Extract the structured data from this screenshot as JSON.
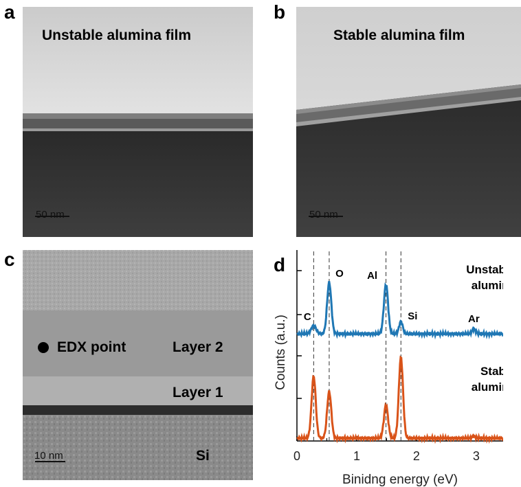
{
  "panels": {
    "a": {
      "letter": "a",
      "title": "Unstable alumina film",
      "scalebar": "50 nm"
    },
    "b": {
      "letter": "b",
      "title": "Stable alumina film",
      "scalebar": "50 nm"
    },
    "c": {
      "letter": "c",
      "marker_label": "EDX point",
      "layer2": "Layer 2",
      "layer1": "Layer 1",
      "substrate": "Si",
      "scalebar": "10 nm"
    },
    "d": {
      "letter": "d"
    }
  },
  "chart_data": {
    "type": "line",
    "xlabel": "Binidng energy (eV)",
    "ylabel": "Counts (a.u.)",
    "xlim": [
      0,
      3.45
    ],
    "xticks": [
      0,
      1,
      2,
      3
    ],
    "dashed_lines_x": [
      0.28,
      0.54,
      1.49,
      1.74
    ],
    "colors": {
      "unstable": "#1f77b4",
      "stable": "#d95319"
    },
    "series": [
      {
        "key": "unstable",
        "label": "Unstable\nalumina",
        "peaks": [
          {
            "x": 0.28,
            "height": 0.12,
            "width": 0.04,
            "label": "C"
          },
          {
            "x": 0.54,
            "height": 0.75,
            "width": 0.035,
            "label": "O"
          },
          {
            "x": 1.49,
            "height": 0.72,
            "width": 0.035,
            "label": "Al"
          },
          {
            "x": 1.74,
            "height": 0.18,
            "width": 0.03,
            "label": "Si"
          },
          {
            "x": 2.96,
            "height": 0.07,
            "width": 0.03,
            "label": "Ar"
          }
        ]
      },
      {
        "key": "stable",
        "label": "Stable\nalumina",
        "peaks": [
          {
            "x": 0.28,
            "height": 0.9,
            "width": 0.035,
            "label": ""
          },
          {
            "x": 0.54,
            "height": 0.68,
            "width": 0.035,
            "label": ""
          },
          {
            "x": 1.49,
            "height": 0.48,
            "width": 0.035,
            "label": ""
          },
          {
            "x": 1.74,
            "height": 1.18,
            "width": 0.035,
            "label": ""
          },
          {
            "x": 2.96,
            "height": 0.03,
            "width": 0.03,
            "label": ""
          }
        ]
      }
    ]
  }
}
